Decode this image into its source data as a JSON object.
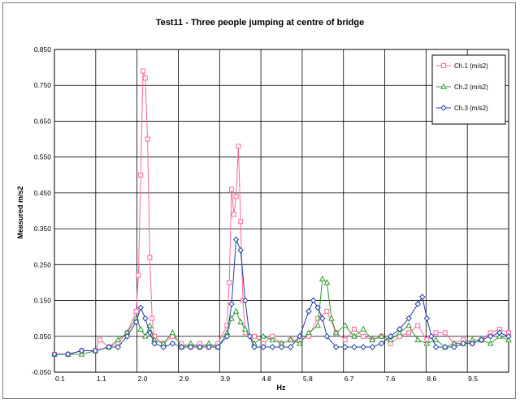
{
  "chart_data": {
    "type": "line",
    "title": "Test11 - Three people jumping at centre of  bridge",
    "xlabel": "Hz",
    "ylabel": "Measured m/s2",
    "ylim": [
      -0.05,
      0.85
    ],
    "xlim": [
      0.0,
      10.0
    ],
    "y_ticks": [
      "-0.050",
      "0.050",
      "0.150",
      "0.250",
      "0.350",
      "0.450",
      "0.550",
      "0.650",
      "0.750",
      "0.850"
    ],
    "x_ticks": [
      "0.1",
      "1.1",
      "2.0",
      "2.9",
      "3.9",
      "4.8",
      "5.8",
      "6.7",
      "7.6",
      "8.6",
      "9.5"
    ],
    "grid": true,
    "legend_position": "top-right",
    "series": [
      {
        "name": "Ch.1 (m/s2)",
        "color": "#ff6699",
        "marker": "square",
        "x": [
          0.0,
          0.3,
          0.6,
          0.9,
          1.0,
          1.2,
          1.4,
          1.6,
          1.8,
          1.85,
          1.9,
          1.95,
          2.0,
          2.05,
          2.1,
          2.15,
          2.2,
          2.4,
          2.6,
          2.8,
          3.0,
          3.2,
          3.4,
          3.6,
          3.8,
          3.85,
          3.9,
          3.95,
          4.0,
          4.05,
          4.1,
          4.15,
          4.2,
          4.4,
          4.6,
          4.8,
          5.0,
          5.2,
          5.4,
          5.6,
          5.8,
          6.0,
          6.2,
          6.4,
          6.6,
          6.8,
          7.0,
          7.2,
          7.4,
          7.6,
          7.8,
          8.0,
          8.2,
          8.4,
          8.6,
          8.8,
          9.0,
          9.2,
          9.4,
          9.6,
          9.8,
          10.0
        ],
        "y": [
          0.0,
          0.0,
          0.01,
          0.01,
          0.04,
          0.02,
          0.03,
          0.06,
          0.12,
          0.22,
          0.5,
          0.79,
          0.77,
          0.6,
          0.27,
          0.1,
          0.05,
          0.03,
          0.05,
          0.03,
          0.02,
          0.03,
          0.02,
          0.03,
          0.08,
          0.2,
          0.46,
          0.39,
          0.44,
          0.58,
          0.37,
          0.15,
          0.06,
          0.05,
          0.03,
          0.05,
          0.03,
          0.04,
          0.04,
          0.05,
          0.1,
          0.12,
          0.06,
          0.04,
          0.07,
          0.05,
          0.04,
          0.05,
          0.03,
          0.05,
          0.06,
          0.08,
          0.04,
          0.06,
          0.06,
          0.03,
          0.04,
          0.03,
          0.04,
          0.06,
          0.07,
          0.06
        ]
      },
      {
        "name": "Ch.2 (m/s2)",
        "color": "#339933",
        "marker": "triangle",
        "x": [
          0.0,
          0.3,
          0.6,
          0.9,
          1.2,
          1.4,
          1.6,
          1.8,
          1.9,
          2.0,
          2.1,
          2.2,
          2.4,
          2.6,
          2.8,
          3.0,
          3.2,
          3.4,
          3.6,
          3.8,
          3.9,
          4.0,
          4.1,
          4.2,
          4.4,
          4.6,
          4.8,
          5.0,
          5.2,
          5.4,
          5.6,
          5.8,
          5.9,
          6.0,
          6.1,
          6.2,
          6.4,
          6.6,
          6.8,
          7.0,
          7.2,
          7.4,
          7.6,
          7.8,
          8.0,
          8.2,
          8.4,
          8.6,
          8.8,
          9.0,
          9.2,
          9.4,
          9.6,
          9.8,
          10.0
        ],
        "y": [
          0.0,
          0.0,
          0.0,
          0.01,
          0.02,
          0.04,
          0.06,
          0.1,
          0.07,
          0.05,
          0.08,
          0.04,
          0.03,
          0.06,
          0.02,
          0.03,
          0.02,
          0.03,
          0.02,
          0.06,
          0.1,
          0.12,
          0.09,
          0.07,
          0.03,
          0.05,
          0.04,
          0.03,
          0.04,
          0.03,
          0.06,
          0.08,
          0.21,
          0.2,
          0.1,
          0.06,
          0.08,
          0.05,
          0.07,
          0.04,
          0.05,
          0.04,
          0.06,
          0.08,
          0.04,
          0.03,
          0.04,
          0.02,
          0.03,
          0.03,
          0.04,
          0.04,
          0.03,
          0.05,
          0.04
        ]
      },
      {
        "name": "Ch.3 (m/s2)",
        "color": "#1f3fa6",
        "marker": "diamond",
        "x": [
          0.0,
          0.3,
          0.6,
          0.9,
          1.2,
          1.4,
          1.6,
          1.8,
          1.9,
          2.0,
          2.1,
          2.2,
          2.4,
          2.6,
          2.8,
          3.0,
          3.2,
          3.4,
          3.6,
          3.8,
          3.9,
          4.0,
          4.1,
          4.2,
          4.3,
          4.4,
          4.6,
          4.8,
          5.0,
          5.2,
          5.4,
          5.6,
          5.7,
          5.8,
          5.9,
          6.0,
          6.2,
          6.4,
          6.6,
          6.8,
          7.0,
          7.2,
          7.4,
          7.6,
          7.8,
          8.0,
          8.1,
          8.2,
          8.3,
          8.4,
          8.6,
          8.8,
          9.0,
          9.2,
          9.4,
          9.6,
          9.8,
          10.0
        ],
        "y": [
          0.0,
          0.0,
          0.01,
          0.01,
          0.02,
          0.02,
          0.05,
          0.09,
          0.13,
          0.1,
          0.06,
          0.03,
          0.02,
          0.03,
          0.02,
          0.02,
          0.02,
          0.02,
          0.02,
          0.05,
          0.14,
          0.32,
          0.29,
          0.15,
          0.05,
          0.02,
          0.02,
          0.02,
          0.02,
          0.02,
          0.05,
          0.12,
          0.15,
          0.13,
          0.1,
          0.05,
          0.02,
          0.02,
          0.02,
          0.02,
          0.02,
          0.03,
          0.05,
          0.07,
          0.1,
          0.14,
          0.16,
          0.1,
          0.05,
          0.02,
          0.02,
          0.02,
          0.03,
          0.03,
          0.04,
          0.05,
          0.06,
          0.05
        ]
      }
    ]
  }
}
